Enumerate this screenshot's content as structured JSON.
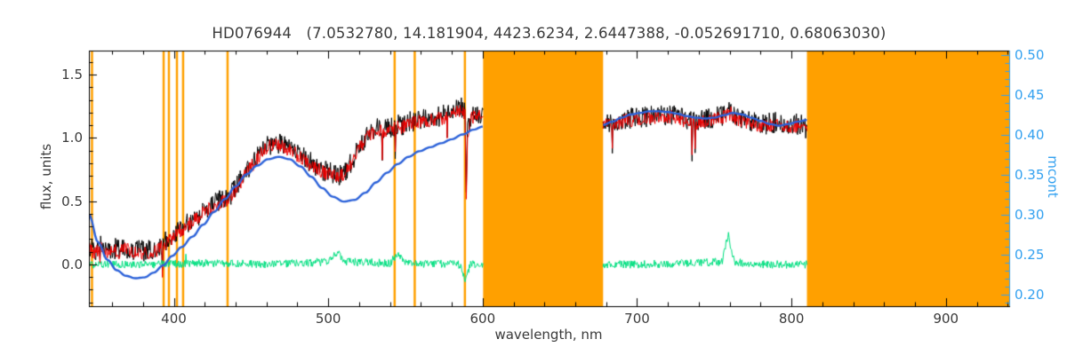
{
  "chart_data": {
    "type": "line",
    "title": "HD076944   (7.0532780, 14.181904, 4423.6234, 2.6447388, -0.052691710, 0.68063030)",
    "xlabel": "wavelength, nm",
    "ylabel_left": "flux, units",
    "ylabel_right": "mcont",
    "xlim": [
      345,
      941
    ],
    "ylim_left": [
      -0.33,
      1.69
    ],
    "ylim_right": [
      0.185,
      0.505
    ],
    "x_ticks": [
      {
        "value": 400,
        "label": "400"
      },
      {
        "value": 500,
        "label": "500"
      },
      {
        "value": 600,
        "label": "600"
      },
      {
        "value": 700,
        "label": "700"
      },
      {
        "value": 800,
        "label": "800"
      },
      {
        "value": 900,
        "label": "900"
      }
    ],
    "y_ticks_left": [
      {
        "value": 0.0,
        "label": "0.0"
      },
      {
        "value": 0.5,
        "label": "0.5"
      },
      {
        "value": 1.0,
        "label": "1.0"
      },
      {
        "value": 1.5,
        "label": "1.5"
      }
    ],
    "y_ticks_right": [
      {
        "value": 0.2,
        "label": "0.20"
      },
      {
        "value": 0.25,
        "label": "0.25"
      },
      {
        "value": 0.3,
        "label": "0.30"
      },
      {
        "value": 0.35,
        "label": "0.35"
      },
      {
        "value": 0.4,
        "label": "0.40"
      },
      {
        "value": 0.45,
        "label": "0.45"
      },
      {
        "value": 0.5,
        "label": "0.50"
      }
    ],
    "x_minor_step": 20,
    "y_left_minor_step": 0.1,
    "y_right_minor_step": 0.01,
    "segments": [
      [
        345,
        600.3
      ],
      [
        678,
        810
      ]
    ],
    "band_regions": [
      [
        600.3,
        678
      ],
      [
        810,
        941
      ]
    ],
    "line_markers": [
      347,
      393.4,
      396.8,
      402,
      406,
      434.8,
      543,
      556,
      588.5
    ],
    "colors": {
      "band": "#FFA000",
      "observed": "#000000",
      "fitted": "#EE0000",
      "residual": "#00E080",
      "mcont": "#2C62D9",
      "right_axis": "#33A1F0",
      "axis_text": "#3A3A3A",
      "frame": "#000000"
    },
    "series": [
      {
        "name": "observed-spectrum",
        "axis": "left",
        "color_key": "observed",
        "noise_amp": 0.085,
        "anchors": [
          [
            345,
            0.14
          ],
          [
            349,
            0.1
          ],
          [
            353,
            0.15
          ],
          [
            357,
            0.11
          ],
          [
            361,
            0.13
          ],
          [
            365,
            0.11
          ],
          [
            369,
            0.14
          ],
          [
            373,
            0.1
          ],
          [
            377,
            0.12
          ],
          [
            381,
            0.1
          ],
          [
            385,
            0.11
          ],
          [
            389,
            0.13
          ],
          [
            393,
            0.16
          ],
          [
            397,
            0.2
          ],
          [
            401,
            0.25
          ],
          [
            405,
            0.29
          ],
          [
            409,
            0.32
          ],
          [
            413,
            0.36
          ],
          [
            417,
            0.4
          ],
          [
            421,
            0.44
          ],
          [
            425,
            0.47
          ],
          [
            429,
            0.5
          ],
          [
            433,
            0.52
          ],
          [
            436,
            0.53
          ],
          [
            440,
            0.6
          ],
          [
            444,
            0.68
          ],
          [
            448,
            0.75
          ],
          [
            452,
            0.82
          ],
          [
            456,
            0.88
          ],
          [
            460,
            0.93
          ],
          [
            464,
            0.96
          ],
          [
            468,
            0.96
          ],
          [
            472,
            0.94
          ],
          [
            476,
            0.91
          ],
          [
            480,
            0.88
          ],
          [
            484,
            0.85
          ],
          [
            488,
            0.81
          ],
          [
            492,
            0.78
          ],
          [
            496,
            0.75
          ],
          [
            500,
            0.73
          ],
          [
            504,
            0.71
          ],
          [
            508,
            0.71
          ],
          [
            512,
            0.75
          ],
          [
            516,
            0.83
          ],
          [
            520,
            0.93
          ],
          [
            524,
            1.0
          ],
          [
            528,
            1.05
          ],
          [
            532,
            1.07
          ],
          [
            536,
            1.06
          ],
          [
            540,
            1.08
          ],
          [
            544,
            1.1
          ],
          [
            548,
            1.1
          ],
          [
            552,
            1.12
          ],
          [
            556,
            1.14
          ],
          [
            560,
            1.15
          ],
          [
            564,
            1.14
          ],
          [
            568,
            1.16
          ],
          [
            572,
            1.17
          ],
          [
            576,
            1.19
          ],
          [
            580,
            1.21
          ],
          [
            584,
            1.23
          ],
          [
            587,
            1.24
          ],
          [
            588.6,
            1.2
          ],
          [
            589.3,
            0.52
          ],
          [
            590.2,
            1.05
          ],
          [
            592,
            1.16
          ],
          [
            595,
            1.19
          ],
          [
            598,
            1.2
          ],
          [
            600.3,
            1.18
          ],
          [
            678,
            1.1
          ],
          [
            682,
            1.13
          ],
          [
            686,
            1.12
          ],
          [
            690,
            1.14
          ],
          [
            694,
            1.16
          ],
          [
            698,
            1.15
          ],
          [
            702,
            1.16
          ],
          [
            706,
            1.17
          ],
          [
            710,
            1.18
          ],
          [
            714,
            1.18
          ],
          [
            718,
            1.17
          ],
          [
            722,
            1.19
          ],
          [
            726,
            1.17
          ],
          [
            730,
            1.15
          ],
          [
            734,
            1.14
          ],
          [
            738,
            1.13
          ],
          [
            742,
            1.14
          ],
          [
            746,
            1.15
          ],
          [
            750,
            1.16
          ],
          [
            754,
            1.17
          ],
          [
            758,
            1.19
          ],
          [
            761,
            1.21
          ],
          [
            764,
            1.17
          ],
          [
            768,
            1.15
          ],
          [
            772,
            1.13
          ],
          [
            776,
            1.12
          ],
          [
            780,
            1.1
          ],
          [
            784,
            1.11
          ],
          [
            788,
            1.12
          ],
          [
            792,
            1.13
          ],
          [
            796,
            1.12
          ],
          [
            800,
            1.11
          ],
          [
            804,
            1.11
          ],
          [
            808,
            1.09
          ],
          [
            810,
            1.07
          ]
        ]
      },
      {
        "name": "fitted-spectrum",
        "axis": "left",
        "color_key": "fitted",
        "noise_amp": 0.055,
        "offset": -0.015,
        "base_from": "observed-spectrum"
      },
      {
        "name": "residual",
        "axis": "left",
        "color_key": "residual",
        "noise_amp": 0.032,
        "anchors": [
          [
            345,
            0.0
          ],
          [
            380,
            0.0
          ],
          [
            420,
            0.01
          ],
          [
            460,
            0.0
          ],
          [
            500,
            0.02
          ],
          [
            506,
            0.09
          ],
          [
            512,
            0.02
          ],
          [
            540,
            0.01
          ],
          [
            545,
            0.08
          ],
          [
            550,
            0.01
          ],
          [
            585,
            0.0
          ],
          [
            589,
            -0.13
          ],
          [
            592,
            0.0
          ],
          [
            600.3,
            0.0
          ],
          [
            678,
            0.0
          ],
          [
            700,
            0.0
          ],
          [
            730,
            0.01
          ],
          [
            755,
            0.02
          ],
          [
            759,
            0.24
          ],
          [
            763,
            0.02
          ],
          [
            780,
            0.0
          ],
          [
            810,
            0.0
          ]
        ]
      },
      {
        "name": "mcont-curve",
        "axis": "right",
        "color_key": "mcont",
        "smooth": true,
        "anchors": [
          [
            345,
            0.3
          ],
          [
            351,
            0.265
          ],
          [
            357,
            0.243
          ],
          [
            363,
            0.23
          ],
          [
            369,
            0.223
          ],
          [
            375,
            0.22
          ],
          [
            381,
            0.221
          ],
          [
            387,
            0.227
          ],
          [
            393,
            0.236
          ],
          [
            399,
            0.248
          ],
          [
            405,
            0.259
          ],
          [
            412,
            0.272
          ],
          [
            419,
            0.287
          ],
          [
            426,
            0.303
          ],
          [
            433,
            0.319
          ],
          [
            440,
            0.335
          ],
          [
            447,
            0.35
          ],
          [
            454,
            0.361
          ],
          [
            461,
            0.369
          ],
          [
            468,
            0.372
          ],
          [
            475,
            0.369
          ],
          [
            482,
            0.36
          ],
          [
            489,
            0.347
          ],
          [
            496,
            0.333
          ],
          [
            503,
            0.322
          ],
          [
            510,
            0.316
          ],
          [
            517,
            0.318
          ],
          [
            524,
            0.327
          ],
          [
            531,
            0.34
          ],
          [
            538,
            0.352
          ],
          [
            545,
            0.363
          ],
          [
            552,
            0.372
          ],
          [
            559,
            0.379
          ],
          [
            566,
            0.384
          ],
          [
            573,
            0.389
          ],
          [
            580,
            0.394
          ],
          [
            587,
            0.4
          ],
          [
            594,
            0.406
          ],
          [
            600.3,
            0.41
          ],
          [
            678,
            0.412
          ],
          [
            684,
            0.416
          ],
          [
            690,
            0.421
          ],
          [
            696,
            0.425
          ],
          [
            702,
            0.427
          ],
          [
            708,
            0.429
          ],
          [
            714,
            0.429
          ],
          [
            720,
            0.428
          ],
          [
            726,
            0.426
          ],
          [
            732,
            0.423
          ],
          [
            738,
            0.421
          ],
          [
            744,
            0.42
          ],
          [
            750,
            0.421
          ],
          [
            756,
            0.424
          ],
          [
            762,
            0.427
          ],
          [
            768,
            0.425
          ],
          [
            774,
            0.421
          ],
          [
            780,
            0.417
          ],
          [
            786,
            0.413
          ],
          [
            792,
            0.411
          ],
          [
            798,
            0.413
          ],
          [
            804,
            0.416
          ],
          [
            810,
            0.418
          ]
        ]
      }
    ]
  }
}
